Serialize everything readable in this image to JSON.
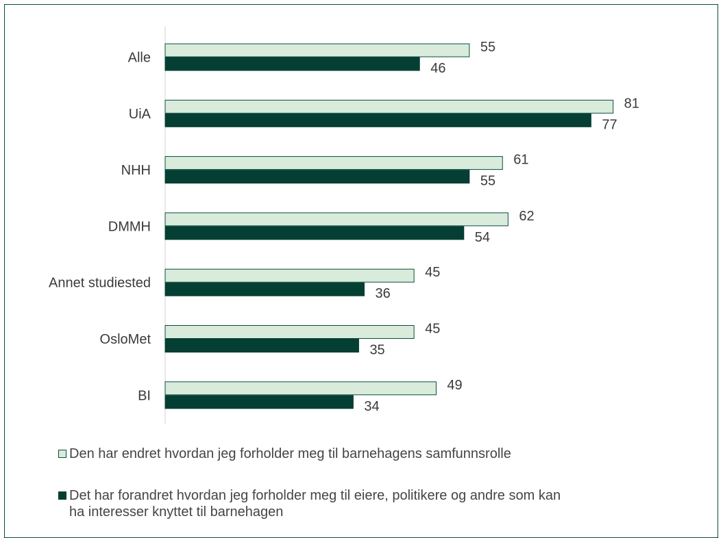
{
  "chart_data": {
    "type": "bar",
    "orientation": "horizontal",
    "categories": [
      "Alle",
      "UiA",
      "NHH",
      "DMMH",
      "Annet studiested",
      "OsloMet",
      "BI"
    ],
    "series": [
      {
        "name": "Den har endret hvordan jeg forholder meg til barnehagens samfunnsrolle",
        "values": [
          55,
          81,
          61,
          62,
          45,
          45,
          49
        ],
        "color": "#d9ecdc",
        "stroke": "#0a4a3c"
      },
      {
        "name": "Det har forandret hvordan jeg forholder meg til eiere, politikere og andre som kan ha interesser knyttet til barnehagen",
        "values": [
          46,
          77,
          55,
          54,
          36,
          35,
          34
        ],
        "color": "#053f33",
        "stroke": "#053f33"
      }
    ],
    "xlim": [
      0,
      100
    ],
    "grid": false,
    "data_labels": true,
    "legend_position": "bottom"
  },
  "legend": {
    "item1": "Den har endret hvordan jeg forholder meg til barnehagens samfunnsrolle",
    "item2_line1": "Det har forandret hvordan jeg forholder meg til eiere, politikere og andre som kan",
    "item2_line2": "ha interesser knyttet til barnehagen"
  }
}
